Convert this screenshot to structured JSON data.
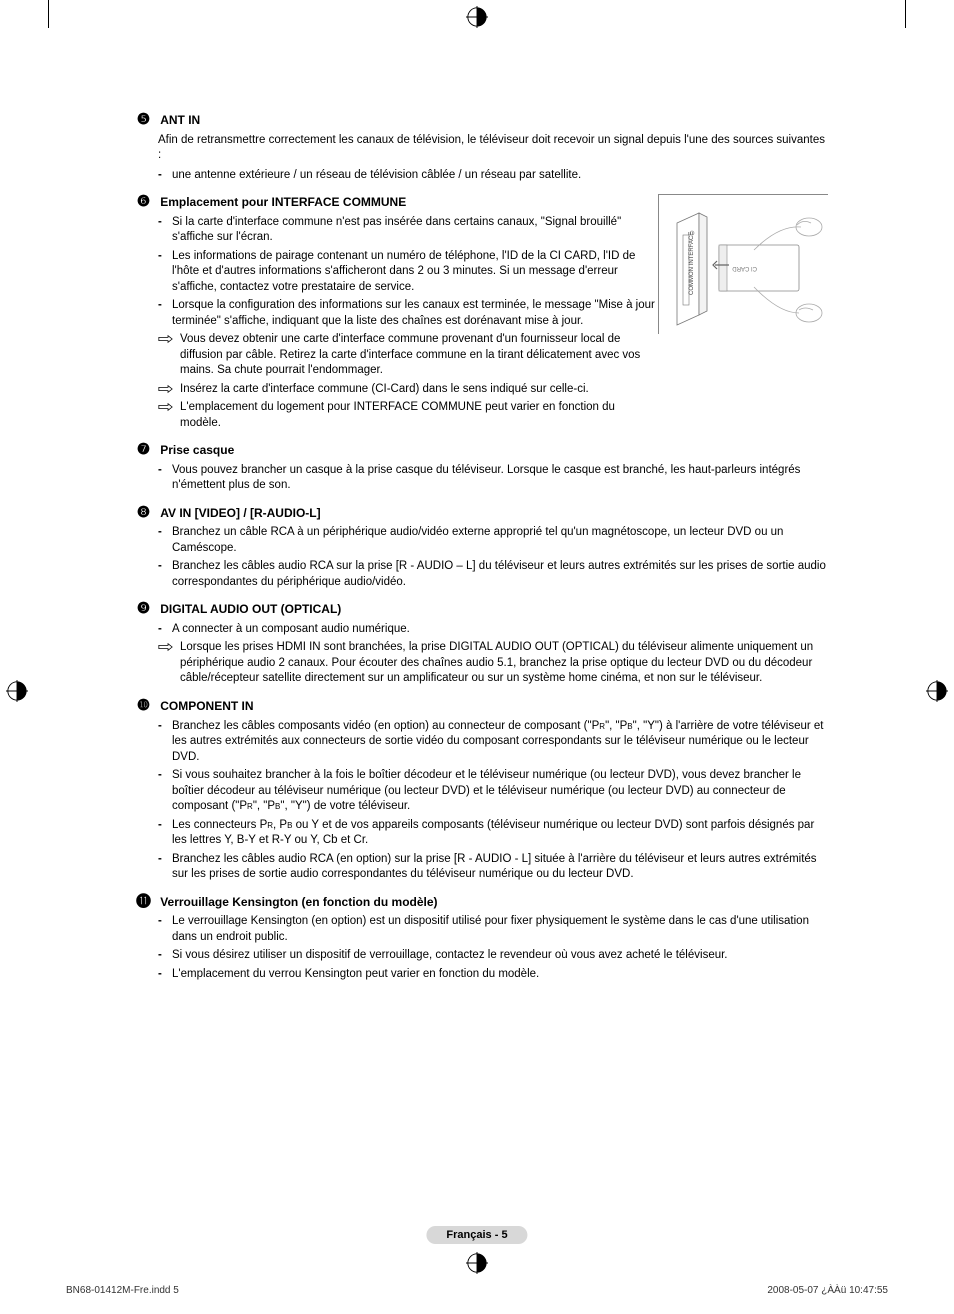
{
  "sections": [
    {
      "num": "5",
      "title": "ANT IN",
      "intro": "Afin de retransmettre correctement les canaux de télévision, le téléviseur doit recevoir un signal depuis l'une des sources suivantes :",
      "dash": [
        "une antenne extérieure / un réseau de télévision câblée / un réseau par satellite."
      ]
    },
    {
      "num": "6",
      "title": "Emplacement pour INTERFACE COMMUNE",
      "narrow": true,
      "figure": true,
      "dash": [
        "Si la carte d'interface commune n'est pas insérée dans certains canaux, \"Signal brouillé\" s'affiche sur l'écran.",
        "Les informations de pairage contenant un numéro de téléphone, l'ID de la CI CARD, l'ID de l'hôte et d'autres informations s'afficheront dans 2 ou 3 minutes. Si un message d'erreur s'affiche, contactez votre prestataire de service.",
        "Lorsque la configuration des informations sur les canaux est terminée, le message \"Mise à jour terminée\" s'affiche, indiquant que la liste des chaînes est dorénavant mise à jour."
      ],
      "arrow": [
        "Vous devez obtenir une carte d'interface commune provenant d'un fournisseur local de diffusion par câble. Retirez la carte d'interface commune en la tirant délicatement avec vos mains. Sa chute pourrait l'endommager.",
        "Insérez la carte d'interface commune (CI-Card) dans le sens indiqué sur celle-ci.",
        "L'emplacement du logement pour INTERFACE COMMUNE peut varier en fonction du modèle."
      ]
    },
    {
      "num": "7",
      "title": "Prise casque",
      "dash": [
        "Vous pouvez brancher un casque à la prise casque du téléviseur. Lorsque le casque est branché, les haut-parleurs intégrés n'émettent plus de son."
      ]
    },
    {
      "num": "8",
      "title": "AV IN [VIDEO] / [R-AUDIO-L]",
      "dash": [
        "Branchez un câble RCA à un périphérique audio/vidéo externe approprié tel qu'un magnétoscope, un lecteur DVD ou un Caméscope.",
        "Branchez les câbles audio RCA sur la prise [R - AUDIO – L] du téléviseur et leurs autres extrémités sur les prises de sortie audio correspondantes du périphérique audio/vidéo."
      ]
    },
    {
      "num": "9",
      "title": "DIGITAL AUDIO OUT (OPTICAL)",
      "dash": [
        "A connecter à un composant audio numérique."
      ],
      "arrow": [
        "Lorsque les prises HDMI IN sont branchées, la prise DIGITAL AUDIO OUT (OPTICAL) du téléviseur alimente uniquement un périphérique audio 2 canaux. Pour écouter des chaînes audio 5.1, branchez la prise optique du lecteur DVD ou du décodeur câble/récepteur satellite directement sur un amplificateur ou sur un système home cinéma, et non sur le téléviseur."
      ]
    },
    {
      "num": "10",
      "title": "COMPONENT IN",
      "dash_html": [
        "Branchez les câbles composants vidéo (en option) au connecteur de composant (\"P<span class='sub'>R</span>\", \"P<span class='sub'>B</span>\", \"Y\") à l'arrière de votre téléviseur et les autres extrémités aux connecteurs de sortie vidéo du composant correspondants sur le téléviseur numérique ou le lecteur DVD.",
        "Si vous souhaitez brancher à la fois le boîtier décodeur et le téléviseur numérique (ou lecteur DVD), vous devez brancher le boîtier décodeur au téléviseur numérique (ou lecteur DVD) et le téléviseur numérique (ou lecteur DVD) au connecteur de composant (\"P<span class='sub'>R</span>\", \"P<span class='sub'>B</span>\", \"Y\") de votre téléviseur.",
        "Les connecteurs P<span class='sub'>R</span>, P<span class='sub'>B</span> ou Y et  de vos appareils composants (téléviseur numérique ou lecteur DVD) sont parfois désignés par les lettres Y, B-Y et R-Y ou Y, Cb et Cr.",
        "Branchez les câbles audio RCA (en option) sur la prise [R - AUDIO - L] située à l'arrière du téléviseur et leurs autres extrémités sur les prises de sortie audio correspondantes du téléviseur numérique ou du lecteur DVD."
      ]
    },
    {
      "num": "11",
      "title": "Verrouillage Kensington (en fonction du modèle)",
      "dash": [
        "Le verrouillage Kensington (en option) est un dispositif utilisé pour fixer physiquement le système dans le cas d'une utilisation dans un endroit public.",
        "Si vous désirez utiliser un dispositif de verrouillage, contactez le revendeur où vous avez acheté le téléviseur.",
        "L'emplacement du verrou Kensington peut varier en fonction du modèle."
      ]
    }
  ],
  "circled_glyphs": {
    "5": "❺",
    "6": "❻",
    "7": "❼",
    "8": "❽",
    "9": "❾",
    "10": "❿",
    "11": "⓫"
  },
  "page_footer_center": "Français - 5",
  "footer": {
    "left": "BN68-01412M-Fre.indd   5",
    "right": "2008-05-07   ¿ÀÀü 10:47:55"
  },
  "ci_figure": {
    "slot_label": "COMMON INTERFACE",
    "card_label": "CI CARD"
  }
}
